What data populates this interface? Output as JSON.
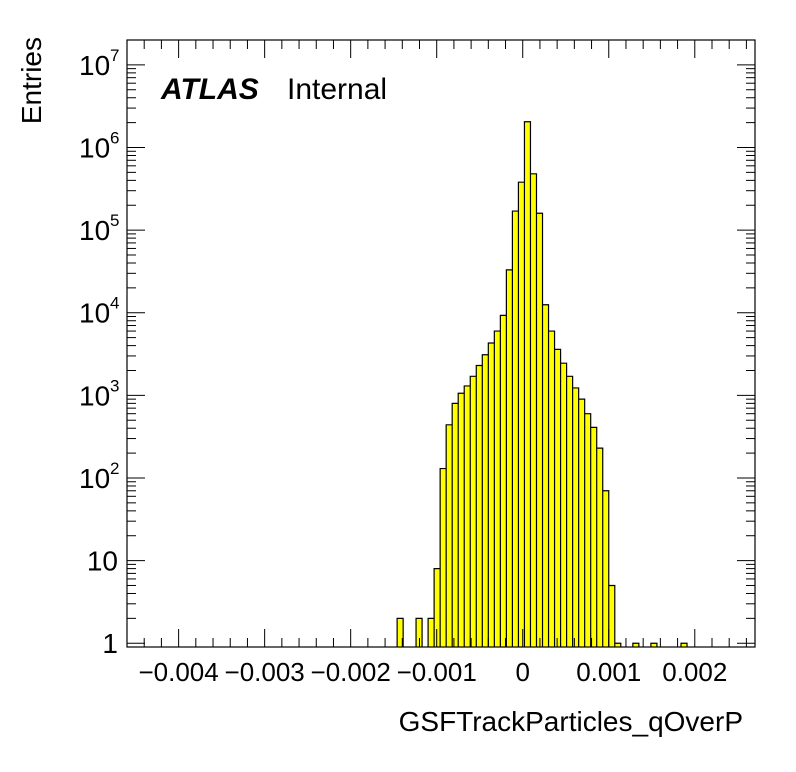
{
  "chart_data": {
    "type": "histogram",
    "title": "",
    "xlabel": "GSFTrackParticles_qOverP",
    "ylabel": "Entries",
    "atlas_label": "ATLAS",
    "atlas_status": "Internal",
    "fill_color": "#ffff00",
    "line_color": "#000000",
    "y_scale": "log",
    "xlim": [
      -0.0046,
      0.0027
    ],
    "ylim": [
      0.9,
      20000000
    ],
    "grid": false,
    "legend": "none",
    "x_ticks": [
      {
        "value": -0.004,
        "label": "−0.004"
      },
      {
        "value": -0.003,
        "label": "−0.003"
      },
      {
        "value": -0.002,
        "label": "−0.002"
      },
      {
        "value": -0.001,
        "label": "−0.001"
      },
      {
        "value": 0,
        "label": "0"
      },
      {
        "value": 0.001,
        "label": "0.001"
      },
      {
        "value": 0.002,
        "label": "0.002"
      }
    ],
    "y_ticks": [
      {
        "value": 1,
        "base": "1",
        "exp": ""
      },
      {
        "value": 10,
        "base": "10",
        "exp": ""
      },
      {
        "value": 100,
        "base": "10",
        "exp": "2"
      },
      {
        "value": 1000,
        "base": "10",
        "exp": "3"
      },
      {
        "value": 10000,
        "base": "10",
        "exp": "4"
      },
      {
        "value": 100000,
        "base": "10",
        "exp": "5"
      },
      {
        "value": 1000000,
        "base": "10",
        "exp": "6"
      },
      {
        "value": 10000000,
        "base": "10",
        "exp": "7"
      }
    ],
    "bins": [
      {
        "lo": -0.00146,
        "hi": -0.00139,
        "count": 2
      },
      {
        "lo": -0.00124,
        "hi": -0.00117,
        "count": 2
      },
      {
        "lo": -0.0011,
        "hi": -0.00103,
        "count": 2
      },
      {
        "lo": -0.00103,
        "hi": -0.00096,
        "count": 8
      },
      {
        "lo": -0.00096,
        "hi": -0.00089,
        "count": 130
      },
      {
        "lo": -0.00089,
        "hi": -0.00082,
        "count": 440
      },
      {
        "lo": -0.00082,
        "hi": -0.00075,
        "count": 800
      },
      {
        "lo": -0.00075,
        "hi": -0.00068,
        "count": 1060
      },
      {
        "lo": -0.00068,
        "hi": -0.00061,
        "count": 1300
      },
      {
        "lo": -0.00061,
        "hi": -0.00054,
        "count": 1700
      },
      {
        "lo": -0.00054,
        "hi": -0.00047,
        "count": 2300
      },
      {
        "lo": -0.00047,
        "hi": -0.0004,
        "count": 3100
      },
      {
        "lo": -0.0004,
        "hi": -0.00033,
        "count": 4300
      },
      {
        "lo": -0.00033,
        "hi": -0.00026,
        "count": 6000
      },
      {
        "lo": -0.00026,
        "hi": -0.00019,
        "count": 9300
      },
      {
        "lo": -0.00019,
        "hi": -0.00012,
        "count": 33000
      },
      {
        "lo": -0.00012,
        "hi": -5e-05,
        "count": 170000
      },
      {
        "lo": -5e-05,
        "hi": 2e-05,
        "count": 380000
      },
      {
        "lo": 2e-05,
        "hi": 9e-05,
        "count": 2050000
      },
      {
        "lo": 9e-05,
        "hi": 0.00016,
        "count": 480000
      },
      {
        "lo": 0.00016,
        "hi": 0.00023,
        "count": 160000
      },
      {
        "lo": 0.00023,
        "hi": 0.0003,
        "count": 12500
      },
      {
        "lo": 0.0003,
        "hi": 0.00037,
        "count": 6000
      },
      {
        "lo": 0.00037,
        "hi": 0.00044,
        "count": 3600
      },
      {
        "lo": 0.00044,
        "hi": 0.00051,
        "count": 2450
      },
      {
        "lo": 0.00051,
        "hi": 0.00058,
        "count": 1700
      },
      {
        "lo": 0.00058,
        "hi": 0.00065,
        "count": 1230
      },
      {
        "lo": 0.00065,
        "hi": 0.00072,
        "count": 900
      },
      {
        "lo": 0.00072,
        "hi": 0.00079,
        "count": 600
      },
      {
        "lo": 0.00079,
        "hi": 0.00086,
        "count": 410
      },
      {
        "lo": 0.00086,
        "hi": 0.00093,
        "count": 230
      },
      {
        "lo": 0.00093,
        "hi": 0.001,
        "count": 70
      },
      {
        "lo": 0.001,
        "hi": 0.00107,
        "count": 5
      },
      {
        "lo": 0.00107,
        "hi": 0.00114,
        "count": 1
      },
      {
        "lo": 0.00128,
        "hi": 0.00135,
        "count": 1
      },
      {
        "lo": 0.00149,
        "hi": 0.00156,
        "count": 1
      },
      {
        "lo": 0.00184,
        "hi": 0.00191,
        "count": 1
      }
    ]
  }
}
